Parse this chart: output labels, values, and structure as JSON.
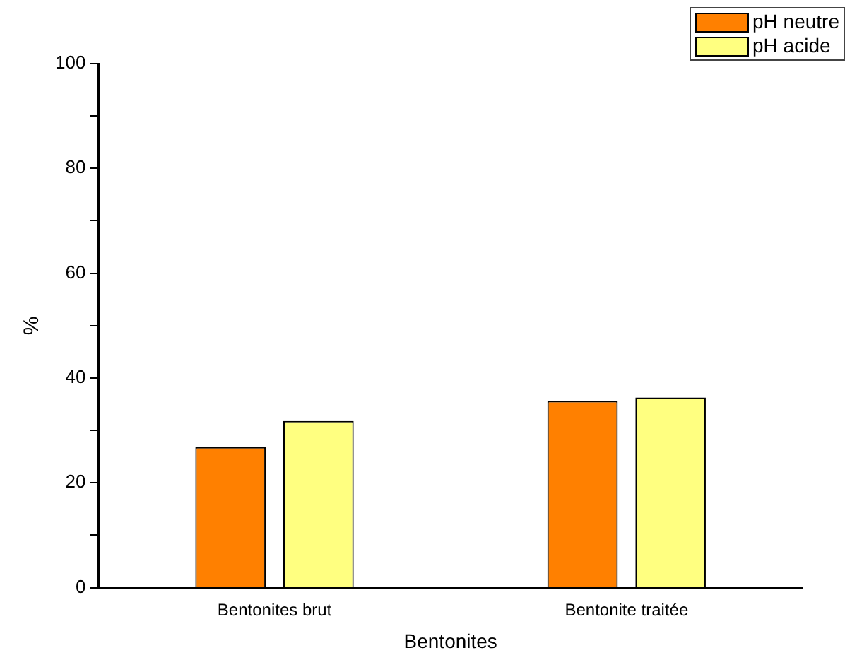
{
  "chart_data": {
    "type": "bar",
    "xlabel": "Bentonites",
    "ylabel": "%",
    "categories": [
      "Bentonites brut",
      "Bentonite traitée"
    ],
    "series": [
      {
        "name": "pH neutre",
        "color": "#ff8000",
        "values": [
          26.8,
          35.6
        ]
      },
      {
        "name": "pH acide",
        "color": "#ffff80",
        "values": [
          31.8,
          36.3
        ]
      }
    ],
    "ylim": [
      0,
      100
    ],
    "yticks": [
      0,
      {
        "value": 10,
        "label": null
      },
      20,
      {
        "value": 30,
        "label": null
      },
      40,
      {
        "value": 50,
        "label": null
      },
      60,
      {
        "value": 70,
        "label": null
      },
      80,
      {
        "value": 90,
        "label": null
      },
      100
    ],
    "grid": false,
    "legend": "top right"
  }
}
